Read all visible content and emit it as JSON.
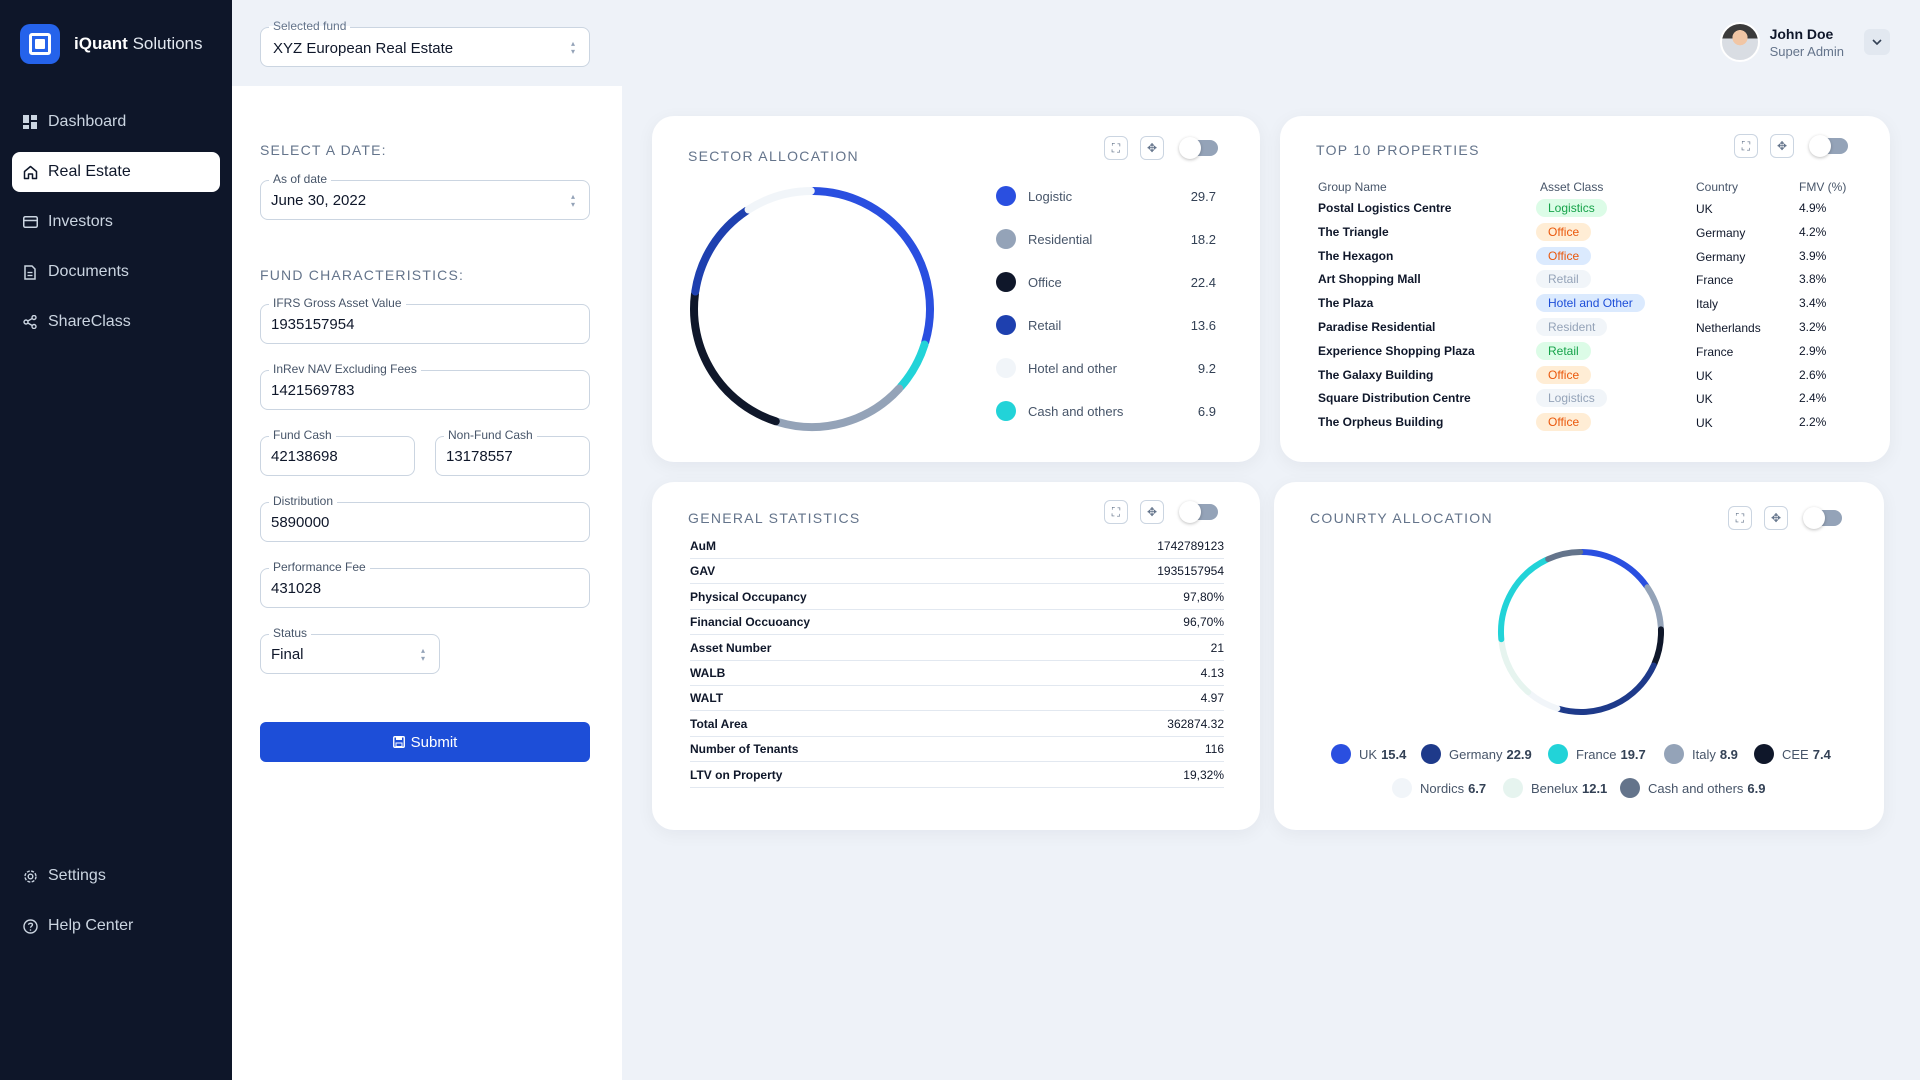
{
  "brand": {
    "bold": "iQuant",
    "rest": "Solutions"
  },
  "nav": {
    "items": [
      {
        "label": "Dashboard",
        "icon": "grid-icon"
      },
      {
        "label": "Real Estate",
        "icon": "home-icon"
      },
      {
        "label": "Investors",
        "icon": "card-icon"
      },
      {
        "label": "Documents",
        "icon": "document-icon"
      },
      {
        "label": "ShareClass",
        "icon": "share-icon"
      }
    ],
    "bottom": [
      {
        "label": "Settings",
        "icon": "gear-icon"
      },
      {
        "label": "Help Center",
        "icon": "help-icon"
      }
    ]
  },
  "topbar": {
    "fund_label": "Selected fund",
    "fund_value": "XYZ European Real Estate",
    "user_name": "John Doe",
    "user_role": "Super Admin"
  },
  "form": {
    "date_title": "SELECT A DATE:",
    "date_label": "As of date",
    "date_value": "June 30, 2022",
    "char_title": "FUND CHARACTERISTICS:",
    "ifrs_label": "IFRS Gross Asset Value",
    "ifrs_value": "1935157954",
    "inrev_label": "InRev NAV Excluding Fees",
    "inrev_value": "1421569783",
    "fund_cash_label": "Fund Cash",
    "fund_cash_value": "42138698",
    "nonfund_cash_label": "Non-Fund Cash",
    "nonfund_cash_value": "13178557",
    "distribution_label": "Distribution",
    "distribution_value": "5890000",
    "perf_label": "Performance Fee",
    "perf_value": "431028",
    "status_label": "Status",
    "status_value": "Final",
    "submit_label": "Submit"
  },
  "sector": {
    "title": "SECTOR ALLOCATION",
    "items": [
      {
        "name": "Logistic",
        "value": "29.7",
        "color": "#2a4fe0"
      },
      {
        "name": "Residential",
        "value": "18.2",
        "color": "#94a3b8"
      },
      {
        "name": "Office",
        "value": "22.4",
        "color": "#0f172a"
      },
      {
        "name": "Retail",
        "value": "13.6",
        "color": "#1e40af"
      },
      {
        "name": "Hotel and other",
        "value": "9.2",
        "color": "#f1f5f9"
      },
      {
        "name": "Cash and others",
        "value": "6.9",
        "color": "#22d3d8"
      }
    ]
  },
  "top10": {
    "title": "TOP 10 PROPERTIES",
    "headers": [
      "Group Name",
      "Asset Class",
      "Country",
      "FMV (%)"
    ],
    "rows": [
      {
        "name": "Postal Logistics Centre",
        "cls": "Logistics",
        "kind": "logistics-green",
        "country": "UK",
        "fmv": "4.9%"
      },
      {
        "name": "The Triangle",
        "cls": "Office",
        "kind": "office",
        "country": "Germany",
        "fmv": "4.2%"
      },
      {
        "name": "The Hexagon",
        "cls": "Office",
        "kind": "office-blue",
        "country": "Germany",
        "fmv": "3.9%"
      },
      {
        "name": "Art Shopping Mall",
        "cls": "Retail",
        "kind": "retail-grey",
        "country": "France",
        "fmv": "3.8%"
      },
      {
        "name": "The Plaza",
        "cls": "Hotel and Other",
        "kind": "hotel",
        "country": "Italy",
        "fmv": "3.4%"
      },
      {
        "name": "Paradise Residential",
        "cls": "Resident",
        "kind": "resident",
        "country": "Netherlands",
        "fmv": "3.2%"
      },
      {
        "name": "Experience Shopping Plaza",
        "cls": "Retail",
        "kind": "retail-green",
        "country": "France",
        "fmv": "2.9%"
      },
      {
        "name": "The Galaxy Building",
        "cls": "Office",
        "kind": "office",
        "country": "UK",
        "fmv": "2.6%"
      },
      {
        "name": "Square Distribution Centre",
        "cls": "Logistics",
        "kind": "logistics-grey",
        "country": "UK",
        "fmv": "2.4%"
      },
      {
        "name": "The Orpheus Building",
        "cls": "Office",
        "kind": "office",
        "country": "UK",
        "fmv": "2.2%"
      }
    ]
  },
  "general": {
    "title": "GENERAL STATISTICS",
    "rows": [
      {
        "k": "AuM",
        "v": "1742789123"
      },
      {
        "k": "GAV",
        "v": "1935157954"
      },
      {
        "k": "Physical Occupancy",
        "v": "97,80%"
      },
      {
        "k": "Financial Occuoancy",
        "v": "96,70%"
      },
      {
        "k": "Asset Number",
        "v": "21"
      },
      {
        "k": "WALB",
        "v": "4.13"
      },
      {
        "k": "WALT",
        "v": "4.97"
      },
      {
        "k": "Total Area",
        "v": "362874.32"
      },
      {
        "k": "Number of Tenants",
        "v": "116"
      },
      {
        "k": "LTV on Property",
        "v": "19,32%"
      }
    ]
  },
  "country": {
    "title": "COUNRTY ALLOCATION",
    "items": [
      {
        "name": "UK",
        "value": "15.4",
        "color": "#2a4fe0"
      },
      {
        "name": "Germany",
        "value": "22.9",
        "color": "#1e3a8a"
      },
      {
        "name": "France",
        "value": "19.7",
        "color": "#22d3d8"
      },
      {
        "name": "Italy",
        "value": "8.9",
        "color": "#94a3b8"
      },
      {
        "name": "CEE",
        "value": "7.4",
        "color": "#0f172a"
      },
      {
        "name": "Nordics",
        "value": "6.7",
        "color": "#f1f5f9"
      },
      {
        "name": "Benelux",
        "value": "12.1",
        "color": "#e6f4ef"
      },
      {
        "name": "Cash and others",
        "value": "6.9",
        "color": "#64748b"
      }
    ]
  }
}
